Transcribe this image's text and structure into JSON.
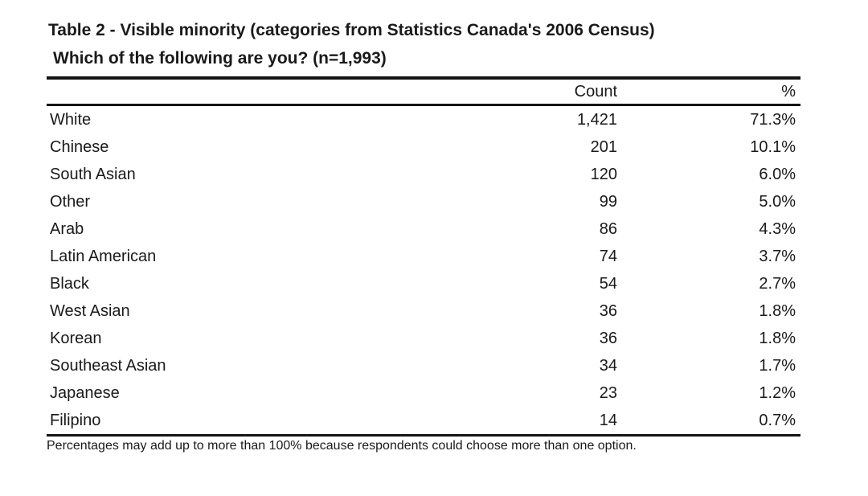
{
  "page": {
    "background": "#ffffff",
    "text_color": "#1a1a1a",
    "rule_color": "#141414"
  },
  "document": {
    "title": "Table 2 - Visible minority (categories from Statistics Canada's 2006 Census)",
    "subtitle": "Which of the following are you? (n=1,993)",
    "footnote": "Percentages may add up to more than 100% because respondents could choose more than one option."
  },
  "table": {
    "columns": {
      "category": "",
      "count": "Count",
      "percent": "%"
    },
    "rows": [
      {
        "label": "White",
        "count": "1,421",
        "percent": "71.3%"
      },
      {
        "label": "Chinese",
        "count": "201",
        "percent": "10.1%"
      },
      {
        "label": "South Asian",
        "count": "120",
        "percent": "6.0%"
      },
      {
        "label": "Other",
        "count": "99",
        "percent": "5.0%"
      },
      {
        "label": "Arab",
        "count": "86",
        "percent": "4.3%"
      },
      {
        "label": "Latin American",
        "count": "74",
        "percent": "3.7%"
      },
      {
        "label": "Black",
        "count": "54",
        "percent": "2.7%"
      },
      {
        "label": "West Asian",
        "count": "36",
        "percent": "1.8%"
      },
      {
        "label": "Korean",
        "count": "36",
        "percent": "1.8%"
      },
      {
        "label": "Southeast Asian",
        "count": "34",
        "percent": "1.7%"
      },
      {
        "label": "Japanese",
        "count": "23",
        "percent": "1.2%"
      },
      {
        "label": "Filipino",
        "count": "14",
        "percent": "0.7%"
      }
    ]
  }
}
